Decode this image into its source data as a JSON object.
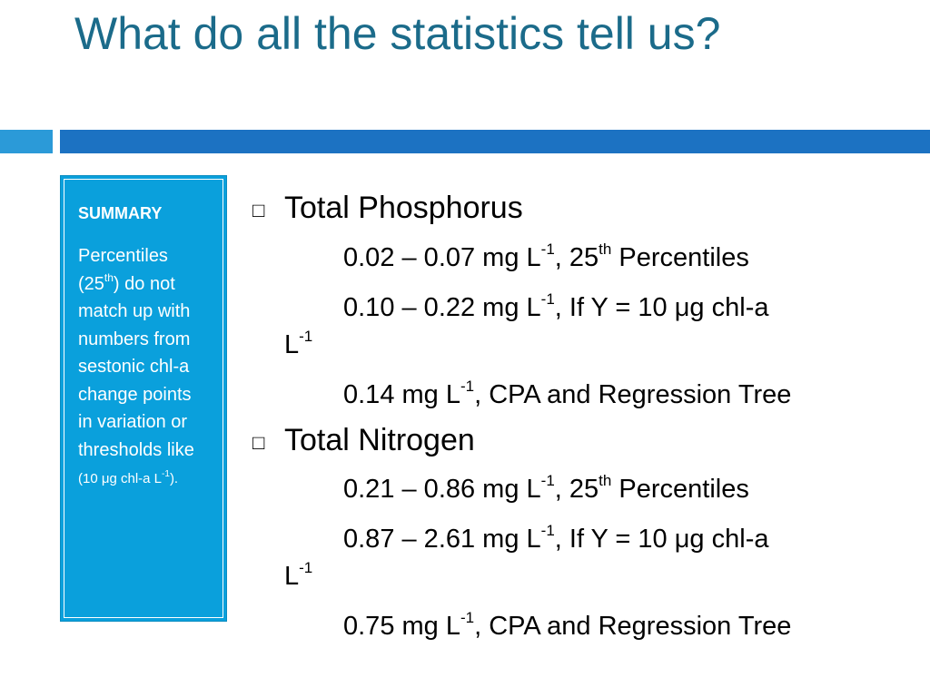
{
  "slide": {
    "title": "What do all the statistics tell us?"
  },
  "sidebar": {
    "heading": "SUMMARY",
    "body": [
      {
        "t": "Percentiles (25"
      },
      {
        "t": "th",
        "sup": true
      },
      {
        "t": ") do not match up with numbers from sestonic chl-a change points in variation or thresholds like "
      },
      {
        "t": "(10 μg chl-a L",
        "small": true
      },
      {
        "t": "-1",
        "sup": true,
        "small": true
      },
      {
        "t": ").",
        "small": true
      }
    ]
  },
  "bullets": [
    {
      "marker": "□",
      "heading": "Total Phosphorus",
      "lines": [
        [
          {
            "t": "0.02 – 0.07 mg L"
          },
          {
            "t": "-1",
            "sup": true
          },
          {
            "t": ", 25"
          },
          {
            "t": "th",
            "sup": true
          },
          {
            "t": " Percentiles"
          }
        ],
        [
          {
            "t": "0.10 – 0.22 mg L"
          },
          {
            "t": "-1",
            "sup": true
          },
          {
            "t": ", If Y = 10 μg chl-a"
          }
        ],
        [
          {
            "t": "L"
          },
          {
            "t": "-1",
            "sup": true
          }
        ],
        [
          {
            "t": "0.14 mg L"
          },
          {
            "t": "-1",
            "sup": true
          },
          {
            "t": ", CPA and Regression Tree"
          }
        ]
      ]
    },
    {
      "marker": "□",
      "heading": "Total Nitrogen",
      "lines": [
        [
          {
            "t": "0.21 – 0.86 mg L"
          },
          {
            "t": "-1",
            "sup": true
          },
          {
            "t": ", 25"
          },
          {
            "t": "th",
            "sup": true
          },
          {
            "t": " Percentiles"
          }
        ],
        [
          {
            "t": "0.87 – 2.61 mg L"
          },
          {
            "t": "-1",
            "sup": true
          },
          {
            "t": ", If Y = 10 μg chl-a"
          }
        ],
        [
          {
            "t": "L"
          },
          {
            "t": "-1",
            "sup": true
          }
        ],
        [
          {
            "t": "0.75 mg L"
          },
          {
            "t": "-1",
            "sup": true
          },
          {
            "t": ", CPA and Regression Tree"
          }
        ]
      ]
    }
  ]
}
